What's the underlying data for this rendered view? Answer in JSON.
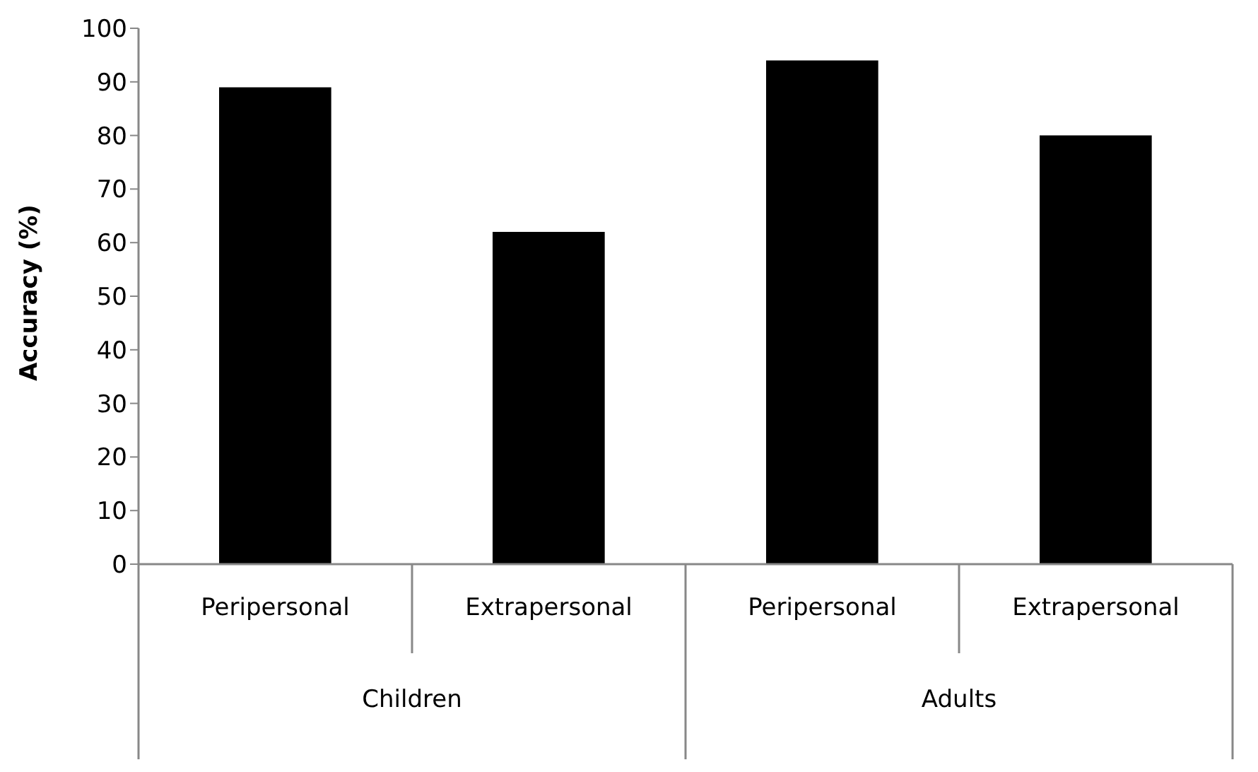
{
  "chart_data": {
    "type": "bar",
    "ylabel": "Accuracy (%)",
    "categories": [
      "Peripersonal",
      "Extrapersonal",
      "Peripersonal",
      "Extrapersonal"
    ],
    "values": [
      89,
      62,
      94,
      80
    ],
    "color": "#000000",
    "annotations": [
      "Children",
      "Adults"
    ],
    "ylim": [
      0,
      100
    ],
    "yticks": [
      0,
      10,
      20,
      30,
      40,
      50,
      60,
      70,
      80,
      90,
      100
    ],
    "grid": false,
    "legend": false
  }
}
